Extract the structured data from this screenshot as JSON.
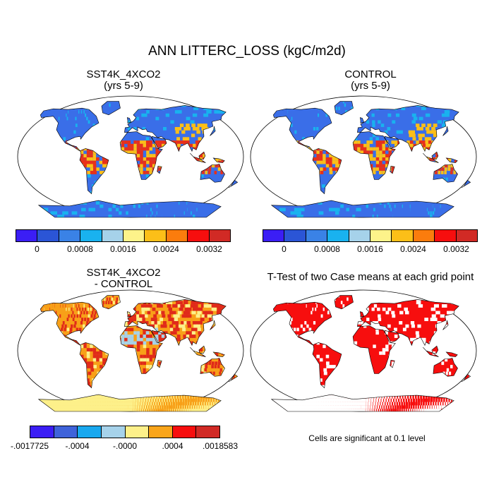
{
  "title": "ANN LITTERC_LOSS (kgC/m2d)",
  "panels": [
    {
      "id": "sst4k",
      "title_line1": "SST4K_4XCO2",
      "title_line2": "(yrs 5-9)"
    },
    {
      "id": "control",
      "title_line1": "CONTROL",
      "title_line2": "(yrs 5-9)"
    },
    {
      "id": "diff",
      "title_line1": "SST4K_4XCO2",
      "title_line2": "- CONTROL"
    },
    {
      "id": "ttest",
      "title_line1": "T-Test of two Case means at each grid point"
    }
  ],
  "colorbar_abs": {
    "colors": [
      "#3b1ef5",
      "#2b55d6",
      "#3a82e6",
      "#19b2ef",
      "#a6d2ea",
      "#fdf38a",
      "#fcbf18",
      "#fb7c0d",
      "#f70e0e",
      "#d12a25"
    ],
    "labels": [
      "0",
      "0.0008",
      "0.0016",
      "0.0024",
      "0.0032"
    ]
  },
  "colorbar_diff": {
    "colors": [
      "#3b1ef5",
      "#3f63da",
      "#19a8ef",
      "#a6d2ea",
      "#fdf08a",
      "#f9a51b",
      "#f70e0e",
      "#d12a25"
    ],
    "labels": [
      "-.0017725",
      "-.0004",
      "-.0000",
      ".0004",
      ".0018583"
    ]
  },
  "note": "Cells are significant at 0.1 level",
  "map_palette": {
    "ocean": "#ffffff",
    "abs_base": "#3a6ee8",
    "abs_hot": "#e8301a",
    "abs_warm": "#fcbf18",
    "abs_cool": "#19b2ef",
    "diff_base": "#f8a018",
    "diff_hot": "#e02a1a",
    "diff_cool": "#a6d2ea",
    "diff_yellow": "#fdf08a",
    "sig": "#f70e0e"
  }
}
